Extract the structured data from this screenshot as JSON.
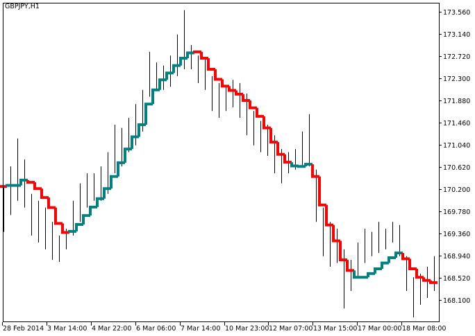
{
  "chart_data": {
    "type": "bar",
    "subtype": "ohlc-high-low with stepped trend line",
    "title": "GBPJPY,H1",
    "ylim": [
      167.68,
      173.73
    ],
    "y_ticks": [
      "173.560",
      "173.140",
      "172.720",
      "172.300",
      "171.880",
      "171.460",
      "171.040",
      "170.620",
      "170.200",
      "169.780",
      "169.360",
      "168.940",
      "168.520",
      "168.100"
    ],
    "x_ticks": [
      "28 Feb 2014",
      "3 Mar 14:00",
      "4 Mar 22:00",
      "6 Mar 06:00",
      "7 Mar 14:00",
      "10 Mar 23:00",
      "12 Mar 07:00",
      "13 Mar 15:00",
      "17 Mar 00:00",
      "18 Mar 08:00"
    ],
    "grid": false,
    "colors": {
      "bars": "#000000",
      "up_trend": "#008080",
      "down_trend": "#ff0000",
      "background": "#ffffff"
    },
    "bars": {
      "high": [
        170.24,
        170.63,
        171.16,
        170.76,
        170.11,
        169.98,
        169.85,
        169.58,
        169.32,
        169.45,
        169.98,
        170.31,
        170.5,
        170.5,
        170.63,
        170.9,
        171.42,
        171.36,
        171.55,
        171.81,
        172.08,
        172.8,
        172.6,
        172.54,
        172.73,
        173.13,
        173.59,
        172.93,
        172.73,
        172.67,
        172.34,
        172.21,
        172.14,
        172.27,
        172.21,
        172.01,
        171.68,
        171.49,
        171.42,
        171.22,
        170.96,
        170.9,
        170.96,
        171.29,
        171.62,
        170.57,
        169.85,
        169.58,
        169.45,
        169.06,
        168.86,
        169.19,
        169.45,
        169.39,
        169.58,
        169.45,
        169.58,
        169.52,
        168.93,
        168.53,
        168.6,
        168.73,
        168.93
      ],
      "low": [
        169.39,
        169.71,
        169.98,
        169.85,
        169.32,
        169.19,
        169.06,
        168.86,
        168.82,
        169.06,
        169.32,
        169.58,
        169.85,
        169.98,
        169.98,
        170.11,
        170.5,
        170.63,
        170.9,
        171.03,
        171.29,
        171.95,
        172.08,
        172.08,
        172.14,
        172.34,
        172.47,
        172.47,
        172.21,
        172.08,
        171.68,
        171.55,
        171.68,
        171.75,
        171.55,
        171.22,
        171.03,
        170.9,
        170.83,
        170.5,
        170.31,
        170.5,
        170.57,
        170.63,
        170.63,
        169.58,
        168.93,
        168.73,
        168.8,
        167.94,
        168.27,
        168.53,
        168.8,
        168.93,
        168.99,
        169.06,
        169.19,
        168.93,
        168.27,
        167.77,
        168.01,
        168.14,
        168.27
      ]
    },
    "trend_line": {
      "values": [
        170.25,
        170.27,
        170.27,
        170.37,
        170.33,
        170.21,
        170.04,
        169.85,
        169.55,
        169.38,
        169.4,
        169.53,
        169.7,
        169.86,
        170.02,
        170.21,
        170.44,
        170.7,
        170.96,
        171.19,
        171.42,
        171.81,
        172.08,
        172.27,
        172.4,
        172.54,
        172.68,
        172.78,
        172.8,
        172.68,
        172.47,
        172.28,
        172.15,
        172.07,
        172.0,
        171.88,
        171.74,
        171.58,
        171.36,
        171.09,
        170.86,
        170.71,
        170.64,
        170.63,
        170.67,
        170.44,
        169.9,
        169.52,
        169.22,
        168.86,
        168.66,
        168.53,
        168.53,
        168.6,
        168.69,
        168.8,
        168.9,
        168.99,
        168.88,
        168.69,
        168.53,
        168.47,
        168.43
      ],
      "direction": [
        "down",
        "up",
        "up",
        "up",
        "down",
        "down",
        "down",
        "down",
        "down",
        "down",
        "up",
        "up",
        "up",
        "up",
        "up",
        "up",
        "up",
        "up",
        "up",
        "up",
        "up",
        "up",
        "up",
        "up",
        "up",
        "up",
        "up",
        "up",
        "down",
        "down",
        "down",
        "down",
        "down",
        "down",
        "down",
        "down",
        "down",
        "down",
        "down",
        "down",
        "down",
        "down",
        "up",
        "up",
        "up",
        "down",
        "down",
        "down",
        "down",
        "down",
        "down",
        "up",
        "up",
        "up",
        "up",
        "up",
        "up",
        "up",
        "down",
        "down",
        "down",
        "down",
        "down"
      ]
    }
  }
}
